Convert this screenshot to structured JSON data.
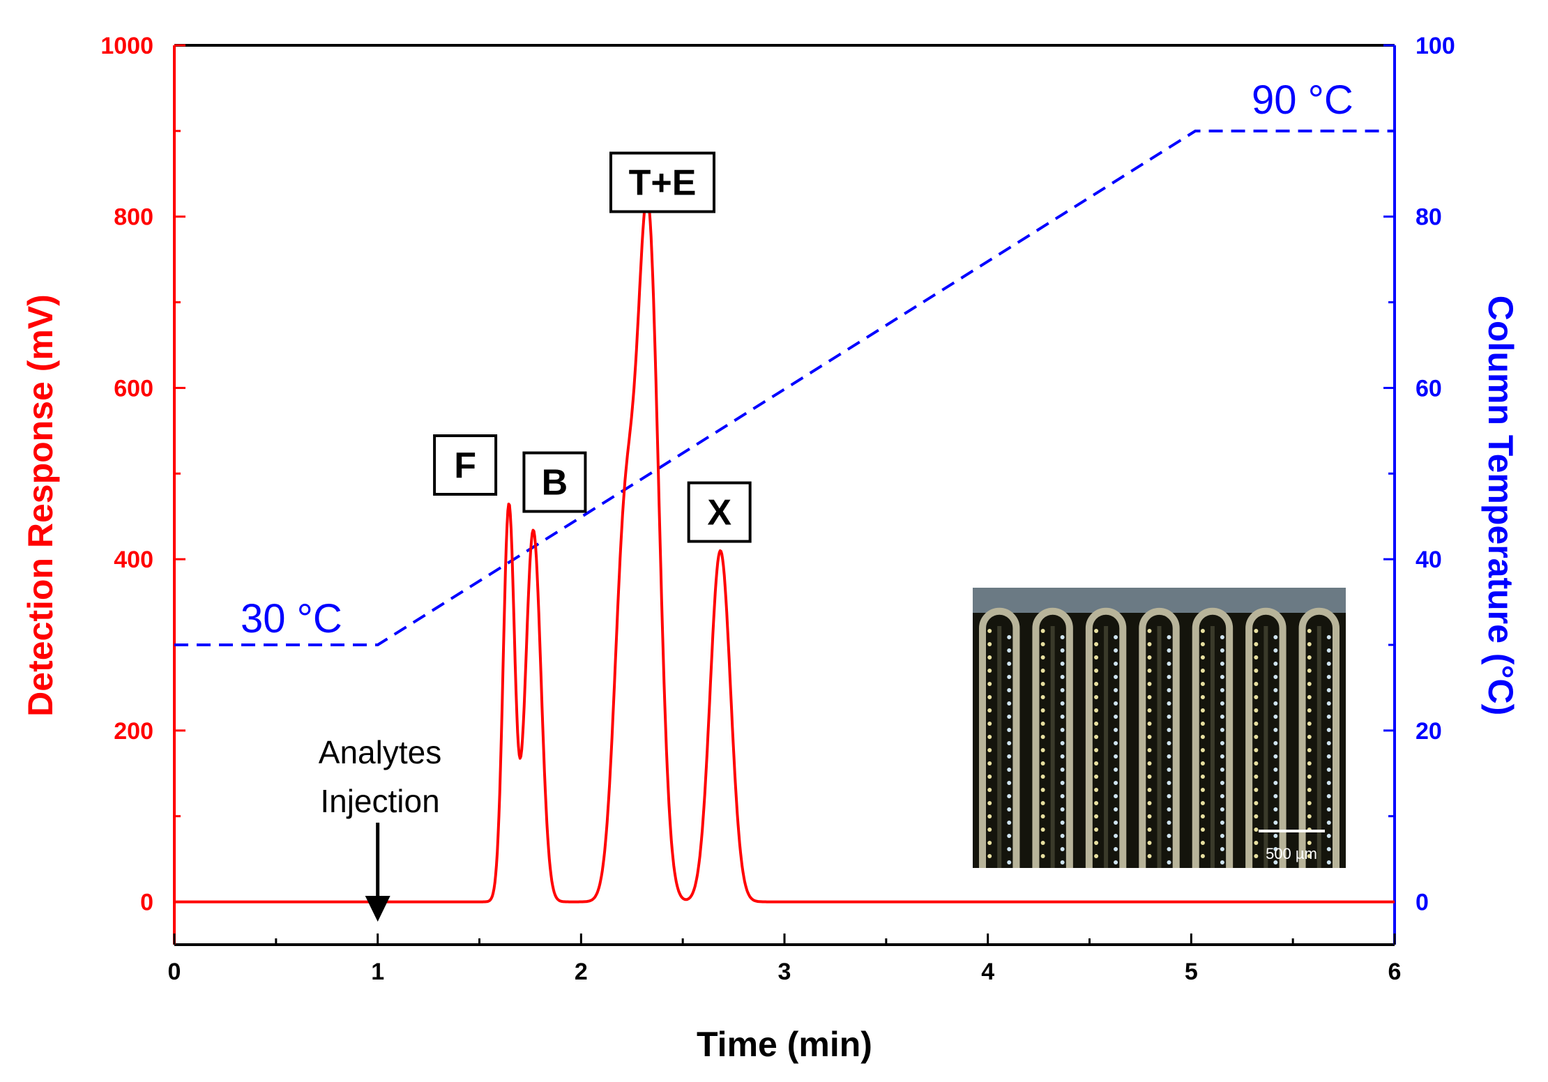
{
  "chart_data": {
    "type": "line",
    "title": "",
    "xlabel": "Time (min)",
    "ylabel_left": "Detection Response (mV)",
    "ylabel_right": "Column Temperature (°C)",
    "xlim": [
      0,
      6
    ],
    "ylim_left": [
      -50,
      1000
    ],
    "ylim_right": [
      -5,
      100
    ],
    "x_ticks": [
      "0",
      "1",
      "2",
      "3",
      "4",
      "5",
      "6"
    ],
    "y_left_ticks": [
      "0",
      "200",
      "400",
      "600",
      "800",
      "1000"
    ],
    "y_right_ticks": [
      "0",
      "20",
      "40",
      "60",
      "80",
      "100"
    ],
    "colors": {
      "response": "#ff0000",
      "temperature": "#0000ff",
      "axis": "#000000"
    },
    "series": [
      {
        "name": "Detection Response",
        "axis": "left",
        "style": "solid",
        "baseline": 0,
        "peaks": [
          {
            "label": "F",
            "center": 1.645,
            "height": 462,
            "width": 0.028
          },
          {
            "label": "B",
            "center": 1.765,
            "height": 434,
            "width": 0.038
          },
          {
            "label": "",
            "center": 2.215,
            "height": 420,
            "width": 0.05
          },
          {
            "label": "T+E",
            "center": 2.33,
            "height": 790,
            "width": 0.052
          },
          {
            "label": "X",
            "center": 2.685,
            "height": 410,
            "width": 0.05
          }
        ]
      },
      {
        "name": "Column Temperature",
        "axis": "right",
        "style": "dashed",
        "x": [
          0,
          1,
          5.02,
          6
        ],
        "y": [
          30,
          30,
          90,
          90
        ]
      }
    ],
    "annotations": {
      "temp_start": "30 °C",
      "temp_end": "90 °C",
      "injection_line1": "Analytes",
      "injection_line2": "Injection",
      "injection_time": 1.0
    },
    "peak_labels": [
      {
        "text": "F",
        "x": 1.43,
        "y": 510
      },
      {
        "text": "B",
        "x": 1.87,
        "y": 490
      },
      {
        "text": "T+E",
        "x": 2.4,
        "y": 840
      },
      {
        "text": "X",
        "x": 2.68,
        "y": 455
      }
    ],
    "inset": {
      "description_label": "",
      "scale_bar_text": "500 µm"
    }
  }
}
